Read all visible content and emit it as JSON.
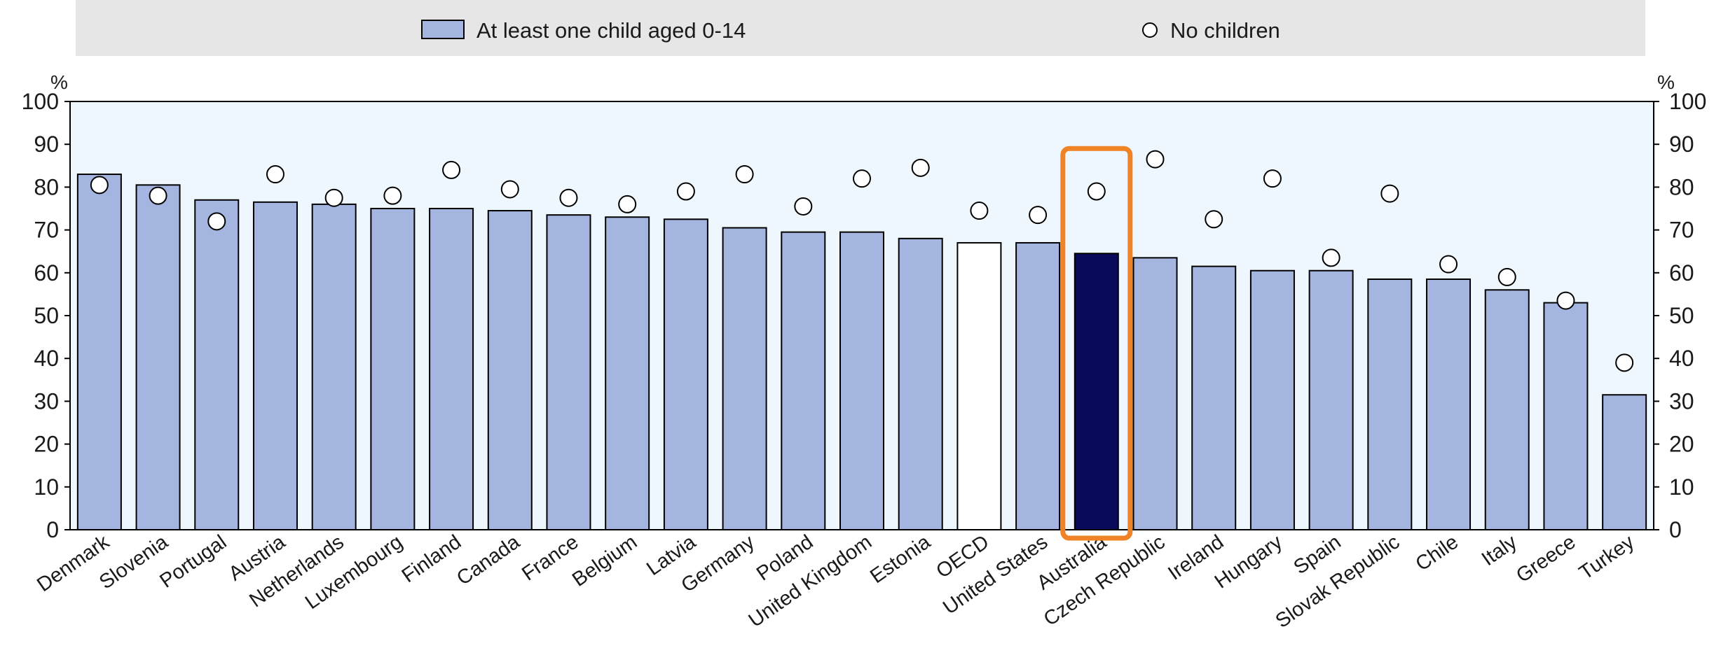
{
  "chart_data": {
    "type": "bar",
    "categories": [
      "Denmark",
      "Slovenia",
      "Portugal",
      "Austria",
      "Netherlands",
      "Luxembourg",
      "Finland",
      "Canada",
      "France",
      "Belgium",
      "Latvia",
      "Germany",
      "Poland",
      "United Kingdom",
      "Estonia",
      "OECD",
      "United States",
      "Australia",
      "Czech Republic",
      "Ireland",
      "Hungary",
      "Spain",
      "Slovak Republic",
      "Chile",
      "Italy",
      "Greece",
      "Turkey"
    ],
    "series": [
      {
        "name": "At least one child aged 0-14",
        "kind": "bar",
        "color": "#a4b6e0",
        "values": [
          83,
          80.5,
          77,
          76.5,
          76,
          75,
          75,
          74.5,
          73.5,
          73,
          72.5,
          70.5,
          69.5,
          69.5,
          68,
          67,
          67,
          64.5,
          63.5,
          61.5,
          60.5,
          60.5,
          58.5,
          58.5,
          56,
          53,
          31.5
        ]
      },
      {
        "name": "No children",
        "kind": "marker",
        "color": "#ffffff",
        "values": [
          80.5,
          78,
          72,
          83,
          77.5,
          78,
          84,
          79.5,
          77.5,
          76,
          79,
          83,
          75.5,
          82,
          84.5,
          74.5,
          73.5,
          79,
          86.5,
          72.5,
          82,
          63.5,
          78.5,
          62,
          59,
          53.5,
          39
        ]
      }
    ],
    "highlight_colors": {
      "OECD": "#ffffff",
      "Australia": "#0a0a5a"
    },
    "highlight_box": {
      "category": "Australia",
      "color": "#f08326"
    },
    "ylim": [
      0,
      100
    ],
    "yticks": [
      0,
      10,
      20,
      30,
      40,
      50,
      60,
      70,
      80,
      90,
      100
    ],
    "y_unit_left": "%",
    "y_unit_right": "%",
    "legend_position": "top",
    "grid": false
  }
}
